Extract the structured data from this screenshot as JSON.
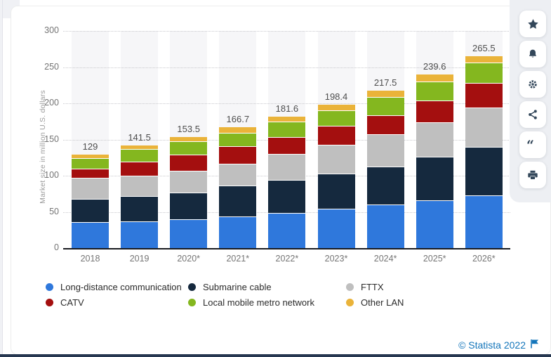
{
  "toolbar": {
    "buttons": [
      {
        "icon": "star-icon"
      },
      {
        "icon": "bell-icon"
      },
      {
        "icon": "gear-icon"
      },
      {
        "icon": "share-icon"
      },
      {
        "icon": "quote-icon"
      },
      {
        "icon": "printer-icon"
      }
    ]
  },
  "footer": {
    "copyright_label": "© Statista 2022",
    "flag_icon": "flag-icon",
    "link_color": "#1375ba"
  },
  "chart_data": {
    "type": "bar",
    "subtype": "stacked-vertical",
    "title": "",
    "xlabel": "",
    "ylabel": "Market size in million U.S. dollars",
    "ylim": [
      0,
      300
    ],
    "y_ticks": [
      0,
      50,
      100,
      150,
      200,
      250,
      300
    ],
    "grid": "horizontal-dotted",
    "legend_position": "bottom",
    "stack_order": "first-series-at-bottom",
    "categories": [
      "2018",
      "2019",
      "2020*",
      "2021*",
      "2022*",
      "2023*",
      "2024*",
      "2025*",
      "2026*"
    ],
    "totals": [
      129,
      141.5,
      153.5,
      166.7,
      181.6,
      198.4,
      217.5,
      239.6,
      265.5
    ],
    "total_labels": [
      "129",
      "141.5",
      "153.5",
      "166.7",
      "181.6",
      "198.4",
      "217.5",
      "239.6",
      "265.5"
    ],
    "series": [
      {
        "name": "Long-distance communication",
        "color": "#2f78dc",
        "values": [
          34.5,
          36,
          39,
          43,
          48,
          53,
          59,
          65,
          72
        ]
      },
      {
        "name": "Submarine cable",
        "color": "#15293e",
        "values": [
          32,
          35,
          37,
          42,
          45.5,
          49,
          52.5,
          60,
          66.5
        ]
      },
      {
        "name": "FTTX",
        "color": "#bfbfbf",
        "values": [
          29.5,
          28,
          29.5,
          31,
          35.5,
          40,
          45,
          48.1,
          55
        ]
      },
      {
        "name": "CATV",
        "color": "#a40f0f",
        "values": [
          13,
          19.5,
          23,
          24,
          23.6,
          26.4,
          26.5,
          29.5,
          33.5
        ]
      },
      {
        "name": "Local mobile metro network",
        "color": "#84b71f",
        "values": [
          14.5,
          17.5,
          18.5,
          18.7,
          21,
          21,
          25,
          26.5,
          28
        ]
      },
      {
        "name": "Other LAN",
        "color": "#eab339",
        "values": [
          5.5,
          5.5,
          6.5,
          8,
          8,
          9,
          9.5,
          10.5,
          10.5
        ]
      }
    ]
  }
}
